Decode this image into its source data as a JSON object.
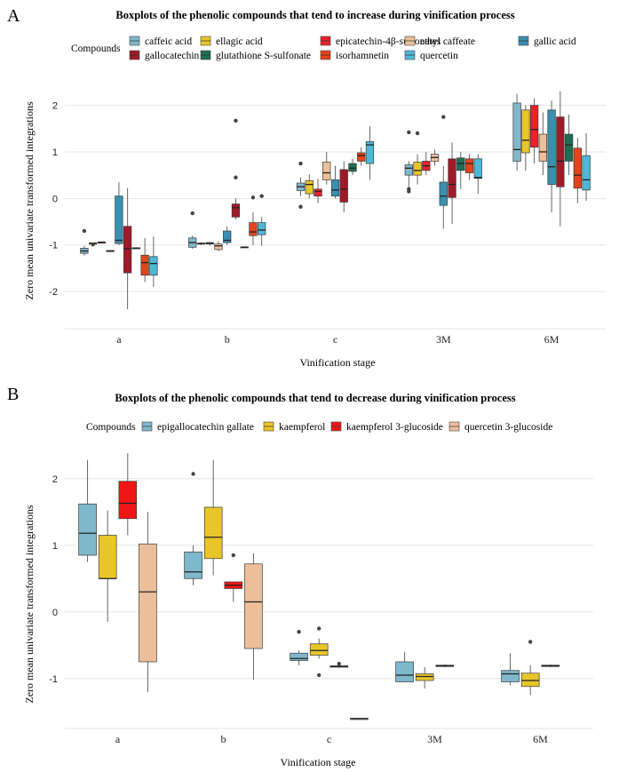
{
  "chart_data": [
    {
      "panel_label": "A",
      "type": "boxplot",
      "title": "Boxplots of the phenolic compounds that tend to increase during vinification process",
      "xlabel": "Vinification stage",
      "ylabel": "Zero mean univariate transformed integrations",
      "legend_title": "Compounds",
      "legend_position": "top",
      "categories": [
        "a",
        "b",
        "c",
        "3M",
        "6M"
      ],
      "y_ticks": [
        -2,
        -1,
        0,
        1,
        2
      ],
      "ylim": [
        -2.8,
        2.45
      ],
      "grid": true,
      "series": [
        {
          "name": "caffeic acid",
          "color": "#7FB8CC",
          "boxes": [
            [
              -1.23,
              -1.18,
              -1.13,
              -1.07,
              -1.02
            ],
            [
              -1.08,
              -1.05,
              -0.95,
              -0.85,
              -0.8
            ],
            [
              0.05,
              0.17,
              0.25,
              0.33,
              0.45
            ],
            [
              0.2,
              0.5,
              0.65,
              0.72,
              0.8
            ],
            [
              0.6,
              0.8,
              1.05,
              2.05,
              2.25
            ]
          ],
          "outliers": [
            [
              -0.7
            ],
            [
              -0.32
            ],
            [
              0.75,
              -0.18
            ],
            [
              0.15,
              0.2,
              1.42
            ],
            []
          ]
        },
        {
          "name": "ellagic acid",
          "color": "#E8C62A",
          "boxes": [
            [
              -0.97,
              -0.96,
              -0.96,
              -0.96,
              -0.95
            ],
            [
              -1.0,
              -0.98,
              -0.97,
              -0.96,
              -0.94
            ],
            [
              0.0,
              0.1,
              0.3,
              0.38,
              0.52
            ],
            [
              0.3,
              0.5,
              0.6,
              0.78,
              0.95
            ],
            [
              0.6,
              0.98,
              1.25,
              1.9,
              2.0
            ]
          ],
          "outliers": [
            [
              -0.99
            ],
            [],
            [],
            [
              1.4
            ],
            []
          ]
        },
        {
          "name": "epicatechin-4β-sulfonates",
          "color": "#E8232A",
          "boxes": [
            [
              -0.96,
              -0.95,
              -0.94,
              -0.94,
              -0.93
            ],
            [
              -1.02,
              -0.98,
              -0.96,
              -0.95,
              -0.94
            ],
            [
              -0.1,
              0.05,
              0.15,
              0.2,
              0.42
            ],
            [
              0.5,
              0.6,
              0.7,
              0.8,
              1.0
            ],
            [
              0.75,
              1.1,
              1.48,
              2.0,
              2.15
            ]
          ],
          "outliers": [
            [],
            [],
            [],
            [],
            []
          ]
        },
        {
          "name": "ethyl caffeate",
          "color": "#ECBF9A",
          "boxes": [
            [
              -1.15,
              -1.14,
              -1.13,
              -1.12,
              -1.11
            ],
            [
              -1.13,
              -1.1,
              -1.02,
              -0.98,
              -0.92
            ],
            [
              0.3,
              0.4,
              0.55,
              0.78,
              1.0
            ],
            [
              0.7,
              0.8,
              0.88,
              0.95,
              1.05
            ],
            [
              0.5,
              0.8,
              1.0,
              1.38,
              1.85
            ]
          ],
          "outliers": [
            [],
            [],
            [],
            [],
            []
          ]
        },
        {
          "name": "gallic acid",
          "color": "#3A8FB0",
          "boxes": [
            [
              -1.0,
              -0.97,
              -0.9,
              0.05,
              0.35
            ],
            [
              -1.0,
              -0.95,
              -0.9,
              -0.7,
              -0.6
            ],
            [
              0.0,
              0.05,
              0.18,
              0.4,
              0.7
            ],
            [
              -0.65,
              -0.15,
              0.05,
              0.35,
              0.7
            ],
            [
              -0.3,
              0.3,
              0.68,
              1.9,
              2.1
            ]
          ],
          "outliers": [
            [],
            [],
            [],
            [
              1.75
            ],
            []
          ]
        },
        {
          "name": "gallocatechin",
          "color": "#A01A2A",
          "boxes": [
            [
              -2.38,
              -1.6,
              -1.08,
              -0.6,
              0.22
            ],
            [
              -0.45,
              -0.4,
              -0.2,
              -0.12,
              0.0
            ],
            [
              -0.3,
              -0.08,
              0.2,
              0.62,
              0.8
            ],
            [
              -0.55,
              0.02,
              0.3,
              0.85,
              1.2
            ],
            [
              -0.6,
              0.25,
              0.8,
              1.75,
              2.3
            ]
          ],
          "outliers": [
            [],
            [
              0.45,
              1.67
            ],
            [],
            [],
            []
          ]
        },
        {
          "name": "glutathione S-sulfonate",
          "color": "#1F6E52",
          "boxes": [
            [
              -1.08,
              -1.07,
              -1.07,
              -1.06,
              -1.05
            ],
            [
              -1.06,
              -1.05,
              -1.05,
              -1.04,
              -1.03
            ],
            [
              0.5,
              0.58,
              0.65,
              0.75,
              0.85
            ],
            [
              0.2,
              0.6,
              0.75,
              0.87,
              1.0
            ],
            [
              0.5,
              0.8,
              1.15,
              1.38,
              1.8
            ]
          ],
          "outliers": [
            [],
            [],
            [],
            [],
            []
          ]
        },
        {
          "name": "isorhamnetin",
          "color": "#E5431B",
          "boxes": [
            [
              -1.8,
              -1.65,
              -1.38,
              -1.22,
              -0.85
            ],
            [
              -1.0,
              -0.8,
              -0.72,
              -0.52,
              -0.3
            ],
            [
              0.7,
              0.8,
              0.92,
              0.98,
              1.1
            ],
            [
              0.4,
              0.55,
              0.75,
              0.85,
              0.95
            ],
            [
              -0.1,
              0.22,
              0.5,
              1.08,
              1.3
            ]
          ],
          "outliers": [
            [],
            [
              0.02
            ],
            [],
            [],
            []
          ]
        },
        {
          "name": "quercetin",
          "color": "#4EB8D8",
          "boxes": [
            [
              -1.9,
              -1.65,
              -1.4,
              -1.25,
              -0.82
            ],
            [
              -1.02,
              -0.78,
              -0.68,
              -0.52,
              -0.4
            ],
            [
              0.4,
              0.75,
              1.15,
              1.22,
              1.55
            ],
            [
              0.1,
              0.43,
              0.45,
              0.85,
              0.95
            ],
            [
              -0.05,
              0.18,
              0.4,
              0.92,
              1.4
            ]
          ],
          "outliers": [
            [],
            [
              0.05
            ],
            [],
            [],
            []
          ]
        }
      ]
    },
    {
      "panel_label": "B",
      "type": "boxplot",
      "title": "Boxplots of the phenolic compounds that tend to decrease during vinification process",
      "xlabel": "Vinification stage",
      "ylabel": "Zero mean univariate transformed integrations",
      "legend_title": "Compounds",
      "legend_position": "top",
      "categories": [
        "a",
        "b",
        "c",
        "3M",
        "6M"
      ],
      "y_ticks": [
        -1,
        0,
        1,
        2
      ],
      "ylim": [
        -1.75,
        2.45
      ],
      "grid": true,
      "series": [
        {
          "name": "epigallocatechin gallate",
          "color": "#7FB8CC",
          "boxes": [
            [
              0.75,
              0.85,
              1.18,
              1.62,
              2.28
            ],
            [
              0.4,
              0.5,
              0.6,
              0.9,
              1.0
            ],
            [
              -0.8,
              -0.73,
              -0.7,
              -0.62,
              -0.58
            ],
            [
              -1.05,
              -1.05,
              -0.95,
              -0.75,
              -0.6
            ],
            [
              -1.1,
              -1.05,
              -0.93,
              -0.88,
              -0.62
            ]
          ],
          "outliers": [
            [],
            [
              2.07
            ],
            [
              -0.3
            ],
            [],
            []
          ]
        },
        {
          "name": "kaempferol",
          "color": "#E8C62A",
          "boxes": [
            [
              -0.15,
              0.5,
              0.5,
              1.15,
              1.52
            ],
            [
              0.55,
              0.8,
              1.12,
              1.57,
              2.28
            ],
            [
              -0.7,
              -0.65,
              -0.58,
              -0.48,
              -0.4
            ],
            [
              -1.15,
              -1.03,
              -0.97,
              -0.93,
              -0.83
            ],
            [
              -1.25,
              -1.12,
              -1.03,
              -0.92,
              -0.8
            ]
          ],
          "outliers": [
            [],
            [],
            [
              -0.25,
              -0.95
            ],
            [],
            [
              -0.45
            ]
          ]
        },
        {
          "name": "kaempferol 3-glucoside",
          "color": "#F01616",
          "boxes": [
            [
              1.15,
              1.4,
              1.63,
              1.96,
              2.38
            ],
            [
              0.15,
              0.35,
              0.4,
              0.45,
              0.45
            ],
            [
              -0.84,
              -0.83,
              -0.82,
              -0.81,
              -0.8
            ],
            [
              -0.83,
              -0.82,
              -0.81,
              -0.8,
              -0.79
            ],
            [
              -0.83,
              -0.82,
              -0.81,
              -0.8,
              -0.79
            ]
          ],
          "outliers": [
            [],
            [
              0.85
            ],
            [
              -0.78
            ],
            [],
            []
          ]
        },
        {
          "name": "quercetin 3-glucoside",
          "color": "#ECBF9A",
          "boxes": [
            [
              -1.2,
              -0.75,
              0.3,
              1.02,
              1.5
            ],
            [
              -1.02,
              -0.55,
              0.15,
              0.72,
              0.88
            ],
            [
              -1.6,
              -1.6,
              -1.6,
              -1.6,
              -1.6
            ],
            [],
            []
          ],
          "outliers": [
            [],
            [],
            [],
            [],
            []
          ]
        }
      ]
    }
  ]
}
